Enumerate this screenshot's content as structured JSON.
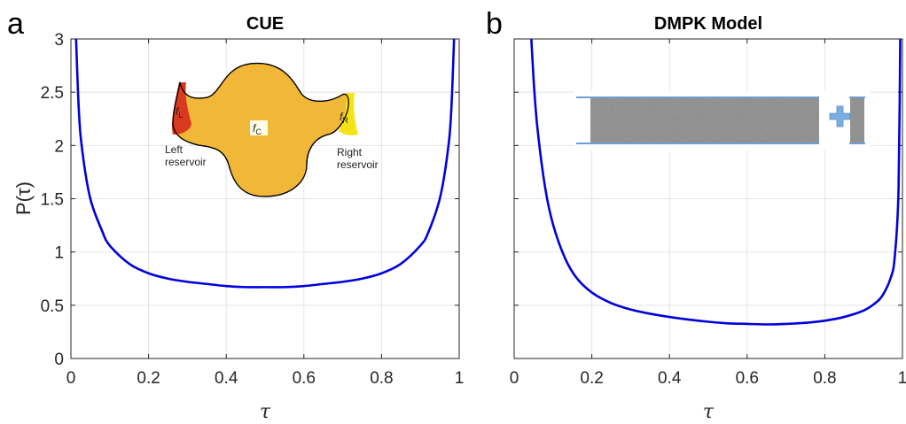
{
  "chart_data": [
    {
      "type": "line",
      "panel_letter": "a",
      "title": "CUE",
      "xlabel": "τ",
      "ylabel": "P(τ)",
      "xlim": [
        0,
        1
      ],
      "ylim": [
        0,
        3
      ],
      "xticks": [
        "0",
        "0.2",
        "0.4",
        "0.6",
        "0.8",
        "1"
      ],
      "yticks": [
        "0",
        "0.5",
        "1",
        "1.5",
        "2",
        "2.5",
        "3"
      ],
      "grid": true,
      "series": [
        {
          "color": "#0000dd",
          "x": [
            0.01,
            0.02,
            0.03,
            0.05,
            0.08,
            0.1,
            0.15,
            0.2,
            0.25,
            0.3,
            0.35,
            0.4,
            0.45,
            0.5,
            0.55,
            0.6,
            0.65,
            0.7,
            0.75,
            0.8,
            0.85,
            0.9,
            0.92,
            0.95,
            0.97,
            0.98,
            0.99
          ],
          "y": [
            3.35,
            2.36,
            1.93,
            1.5,
            1.2,
            1.06,
            0.89,
            0.8,
            0.75,
            0.72,
            0.7,
            0.68,
            0.67,
            0.67,
            0.67,
            0.68,
            0.7,
            0.72,
            0.75,
            0.8,
            0.89,
            1.06,
            1.18,
            1.5,
            1.93,
            2.36,
            3.35
          ]
        }
      ],
      "inset": {
        "labels": {
          "f_left": "f",
          "f_left_sub": "L",
          "f_center": "f",
          "f_center_sub": "C",
          "f_right": "f",
          "f_right_sub": "R",
          "left_line1": "Left",
          "left_line2": "reservoir",
          "right_line1": "Right",
          "right_line2": "reservoir"
        },
        "colors": {
          "body": "#f2b531",
          "left": "#d93a1f",
          "right": "#f5e318"
        }
      }
    },
    {
      "type": "line",
      "panel_letter": "b",
      "title": "DMPK Model",
      "xlabel": "τ",
      "xlim": [
        0,
        1
      ],
      "ylim": [
        0,
        3
      ],
      "xticks": [
        "0",
        "0.2",
        "0.4",
        "0.6",
        "0.8",
        "1"
      ],
      "grid": true,
      "series": [
        {
          "color": "#0000dd",
          "x": [
            0.04,
            0.05,
            0.06,
            0.08,
            0.1,
            0.13,
            0.16,
            0.2,
            0.25,
            0.3,
            0.35,
            0.4,
            0.45,
            0.5,
            0.55,
            0.6,
            0.65,
            0.7,
            0.75,
            0.8,
            0.85,
            0.9,
            0.93,
            0.95,
            0.97,
            0.98,
            0.99,
            0.995
          ],
          "y": [
            3.3,
            2.62,
            2.16,
            1.6,
            1.26,
            0.95,
            0.76,
            0.62,
            0.52,
            0.46,
            0.42,
            0.39,
            0.365,
            0.345,
            0.33,
            0.325,
            0.32,
            0.325,
            0.335,
            0.355,
            0.39,
            0.45,
            0.52,
            0.6,
            0.76,
            0.95,
            1.6,
            3.3
          ]
        }
      ],
      "inset": {
        "colors": {
          "wire": "#8e8e8e",
          "edge": "#6f9fd0",
          "plus": "#7aaee0"
        }
      }
    }
  ]
}
